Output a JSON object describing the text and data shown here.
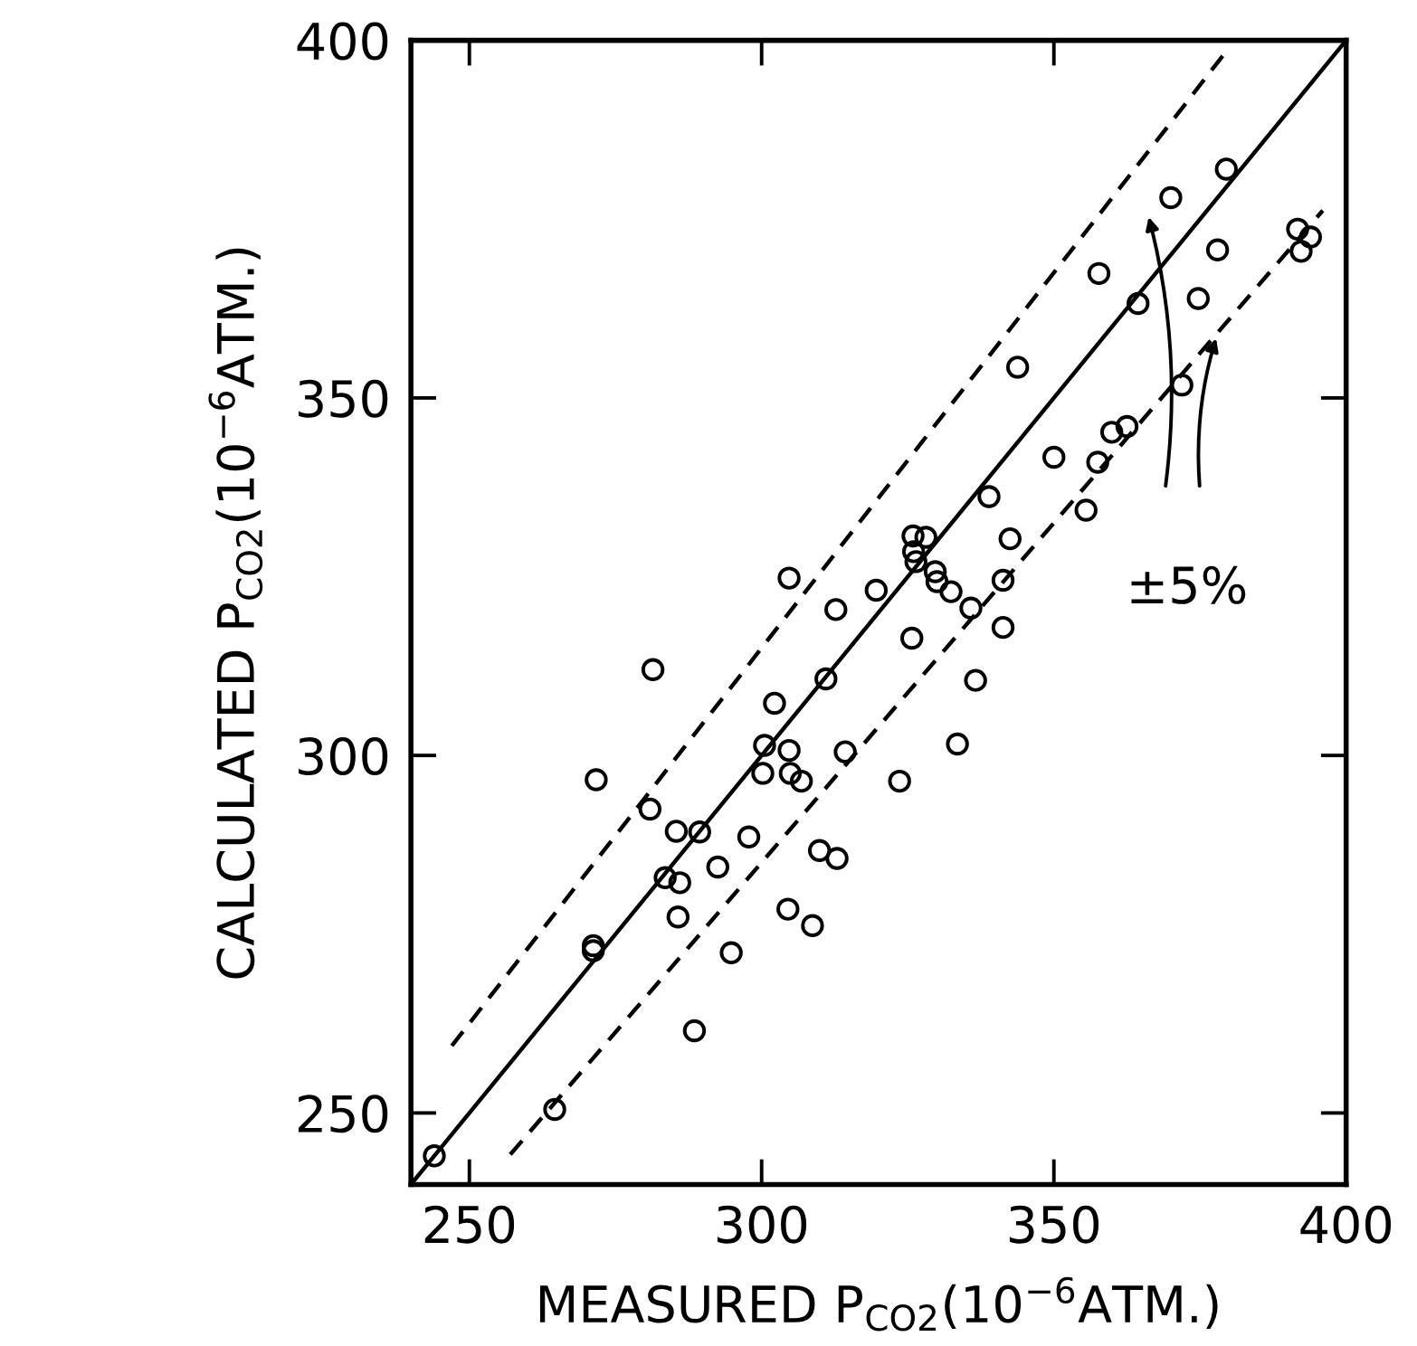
{
  "chart_data": {
    "type": "scatter",
    "xlabel": "MEASURED P$_{CO2}$(10$^{−6}$ATM.)",
    "ylabel": "CALCULATED P$_{CO2}$(10$^{−6}$ATM.)",
    "xlim": [
      240,
      400
    ],
    "ylim": [
      240,
      400
    ],
    "xticks": [
      250,
      300,
      350,
      400
    ],
    "yticks": [
      250,
      300,
      350,
      400
    ],
    "grid": false,
    "annotations": [
      "±5%"
    ],
    "series": [
      {
        "color": "#000000",
        "marker": "circle",
        "x": [
          379.5,
          370,
          357.7,
          364.4,
          378,
          374.7,
          391.7,
          393.9,
          392.3,
          343.8,
          371.9,
          359.9,
          362.5,
          350,
          357.5,
          355.5,
          338.9,
          342.5,
          325.9,
          328.1,
          326,
          326.4,
          329.7,
          330,
          332.4,
          341.3,
          304.7,
          319.6,
          312.7,
          335.8,
          341.3,
          325.7,
          281.4,
          311,
          336.6,
          302.2,
          300.5,
          304.7,
          314.3,
          333.5,
          300.2,
          304.9,
          306.8,
          323.6,
          271.7,
          280.9,
          285.4,
          289.4,
          297.8,
          309.9,
          312.9,
          292.5,
          283.5,
          286,
          285.7,
          304.5,
          308.7,
          271.2,
          271.2,
          294.8,
          288.5,
          264.6,
          244
        ],
        "values": [
          382,
          378,
          367.4,
          363.2,
          370.7,
          363.9,
          373.6,
          372.5,
          370.5,
          354.3,
          351.8,
          345.2,
          346,
          341.7,
          341,
          334.3,
          336.2,
          330.3,
          330.7,
          330.5,
          328.5,
          327.1,
          325.7,
          324.3,
          322.9,
          324.5,
          324.8,
          323.1,
          320.4,
          320.6,
          317.9,
          316.4,
          312,
          310.7,
          310.5,
          307.3,
          301.4,
          300.7,
          300.5,
          301.6,
          297.5,
          297.5,
          296.4,
          296.4,
          296.6,
          292.5,
          289.4,
          289.3,
          288.6,
          286.7,
          285.6,
          284.4,
          282.9,
          282.2,
          277.4,
          278.5,
          276.2,
          273.4,
          272.7,
          272.4,
          261.5,
          250.5,
          244
        ]
      },
      {
        "type": "line",
        "color": "#000000",
        "line_style": "solid",
        "x": [
          240,
          400
        ],
        "values": [
          240,
          400
        ]
      },
      {
        "type": "line",
        "color": "#000000",
        "line_style": "dashed",
        "x": [
          247,
          380
        ],
        "values": [
          259.4,
          399
        ]
      },
      {
        "type": "line",
        "color": "#000000",
        "line_style": "dashed",
        "x": [
          257,
          396
        ],
        "values": [
          244.2,
          376.2
        ]
      }
    ]
  }
}
